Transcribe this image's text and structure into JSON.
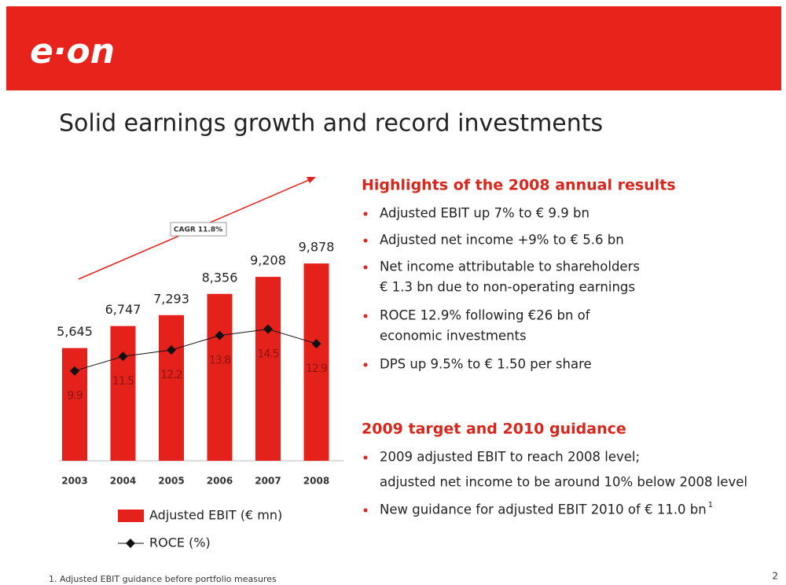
{
  "header": {
    "logo": "e·on"
  },
  "title": "Solid earnings growth and record investments",
  "chart_data": {
    "type": "bar",
    "categories": [
      "2003",
      "2004",
      "2005",
      "2006",
      "2007",
      "2008"
    ],
    "series": [
      {
        "name": "Adjusted EBIT (€ mn)",
        "color": "#e5211b",
        "values": [
          5645,
          6747,
          7293,
          8356,
          9208,
          9878
        ],
        "value_labels": [
          "5,645",
          "6,747",
          "7,293",
          "8,356",
          "9,208",
          "9,878"
        ]
      },
      {
        "name": "ROCE (%)",
        "type": "line",
        "axis": "y2",
        "color": "#111111",
        "values": [
          9.9,
          11.5,
          12.2,
          13.8,
          14.5,
          12.9
        ]
      }
    ],
    "ylim": [
      0,
      10000
    ],
    "y2lim": [
      0,
      22
    ],
    "annotations": [
      {
        "text": "CAGR 11.8%"
      }
    ]
  },
  "sections": [
    {
      "heading": "Highlights of the 2008 annual results",
      "items": [
        {
          "lines": [
            "Adjusted EBIT up 7% to € 9.9 bn"
          ]
        },
        {
          "lines": [
            "Adjusted net income +9% to € 5.6 bn"
          ]
        },
        {
          "lines": [
            "Net income attributable to shareholders",
            "€ 1.3 bn due to non-operating earnings"
          ]
        },
        {
          "lines": [
            "ROCE 12.9% following €26 bn of",
            "economic investments"
          ]
        },
        {
          "lines": [
            "DPS up 9.5% to € 1.50 per share"
          ]
        }
      ]
    },
    {
      "heading": "2009 target and 2010 guidance",
      "items": [
        {
          "lines": [
            "2009 adjusted EBIT to reach 2008 level;",
            "adjusted net income to be around 10% below 2008 level"
          ]
        },
        {
          "lines": [
            "New guidance for adjusted EBIT 2010 of € 11.0 bn"
          ],
          "sup": "1"
        }
      ]
    }
  ],
  "footnote": "1. Adjusted EBIT guidance before portfolio measures",
  "page_number": "2"
}
